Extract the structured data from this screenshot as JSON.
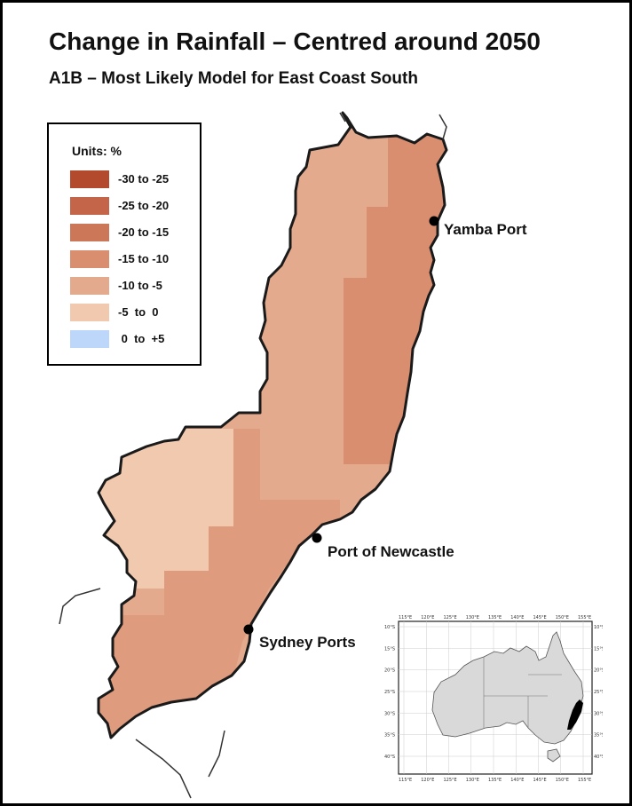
{
  "title": "Change in Rainfall – Centred around 2050",
  "subtitle": "A1B – Most Likely Model for East Coast South",
  "legend": {
    "units_label": "Units: %",
    "items": [
      {
        "label": "-30 to -25",
        "color": "#b34a2e"
      },
      {
        "label": "-25 to -20",
        "color": "#c4654a"
      },
      {
        "label": "-20 to -15",
        "color": "#cc7758"
      },
      {
        "label": "-15 to -10",
        "color": "#d98e70"
      },
      {
        "label": "-10 to -5",
        "color": "#e4aa8e"
      },
      {
        "label": "-5  to  0",
        "color": "#f0c9ae"
      },
      {
        "label": " 0  to  +5",
        "color": "#bcd7fa"
      }
    ]
  },
  "ports": [
    {
      "name": "Yamba Port"
    },
    {
      "name": "Port of Newcastle"
    },
    {
      "name": "Sydney Ports"
    }
  ],
  "inset": {
    "top_ticks": [
      "115°E",
      "120°E",
      "125°E",
      "130°E",
      "135°E",
      "140°E",
      "145°E",
      "150°E",
      "155°E"
    ],
    "bottom_ticks": [
      "115°E",
      "120°E",
      "125°E",
      "130°E",
      "135°E",
      "140°E",
      "145°E",
      "150°E",
      "155°E"
    ],
    "left_ticks": [
      "10°S",
      "15°S",
      "20°S",
      "25°S",
      "30°S",
      "35°S",
      "40°S"
    ],
    "right_ticks": [
      "10°S",
      "15°S",
      "20°S",
      "25°S",
      "30°S",
      "35°S",
      "40°S"
    ]
  }
}
